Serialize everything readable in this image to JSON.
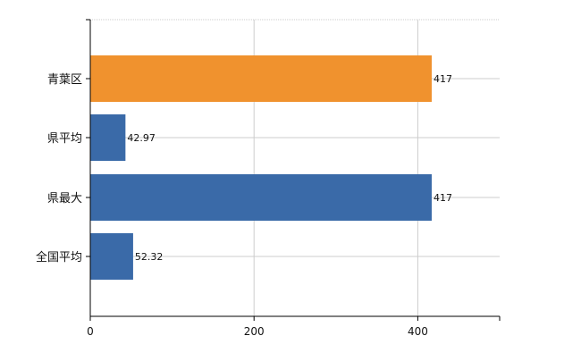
{
  "chart_data": {
    "type": "bar",
    "orientation": "horizontal",
    "categories": [
      "青葉区",
      "県平均",
      "県最大",
      "全国平均"
    ],
    "values": [
      417,
      42.97,
      417,
      52.32
    ],
    "value_labels": [
      "417",
      "42.97",
      "417",
      "52.32"
    ],
    "bar_colors": [
      "#f0922e",
      "#3a6aa8",
      "#3a6aa8",
      "#3a6aa8"
    ],
    "xlim": [
      0,
      500
    ],
    "xticks": [
      0,
      200,
      400
    ],
    "xtick_labels": [
      "0",
      "200",
      "400"
    ],
    "grid": true,
    "gridline_color": "#cccccc"
  }
}
